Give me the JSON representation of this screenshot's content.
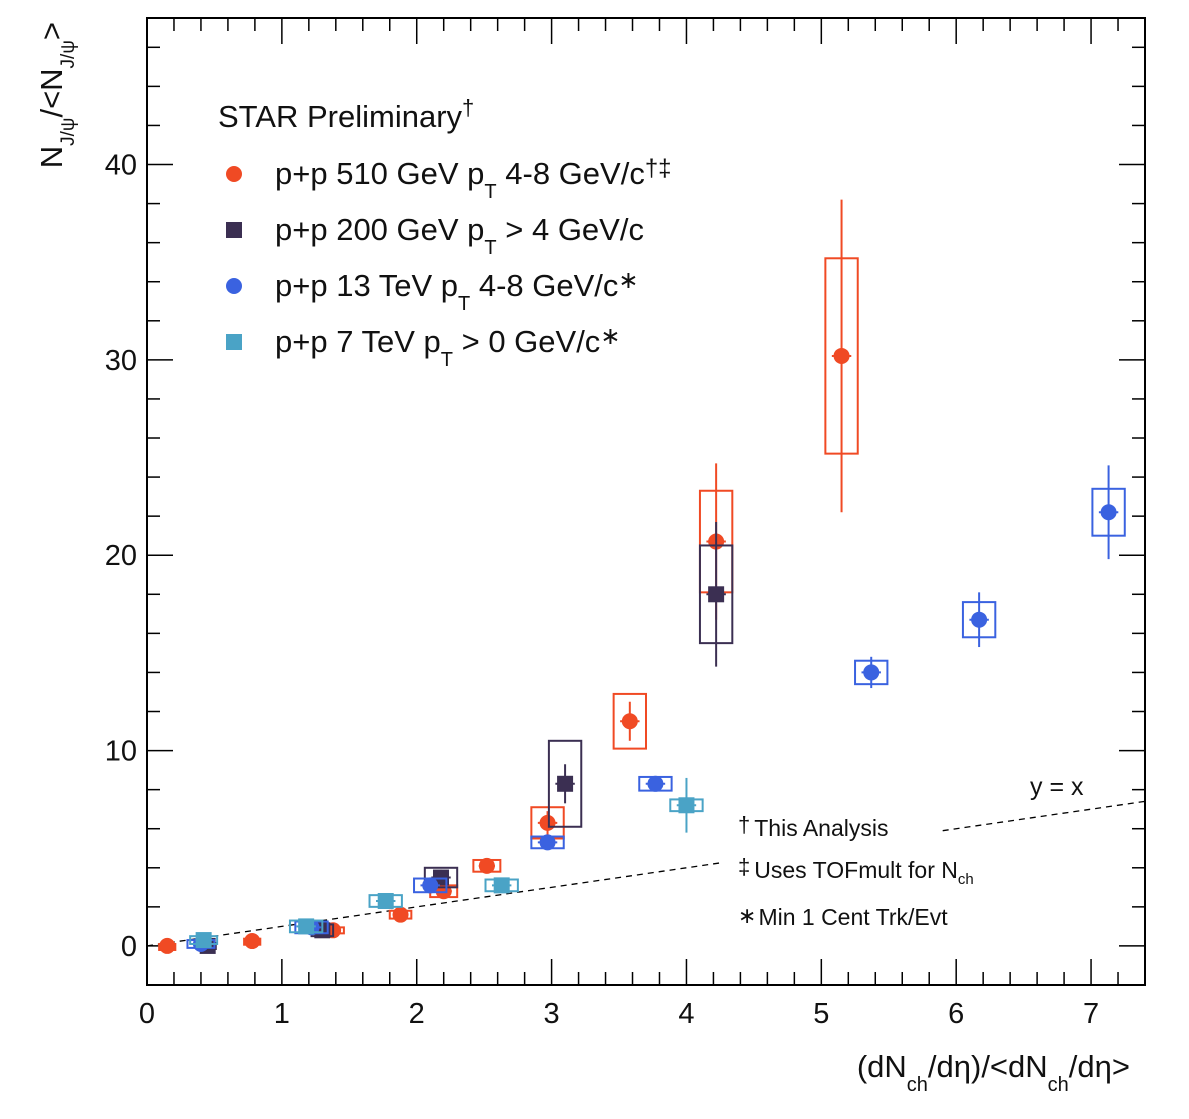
{
  "chart_data": {
    "type": "scatter",
    "title": "",
    "xlabel": {
      "main": "(dN",
      "sub1": "ch",
      "mid": "/dη)/<dN",
      "sub2": "ch",
      "end": "/dη>"
    },
    "ylabel": {
      "a": "N",
      "sub1": "J/ψ",
      "b": "/<N",
      "sub2": "J/ψ",
      "c": ">"
    },
    "xlim": [
      0,
      7.4
    ],
    "ylim": [
      -2,
      47.5
    ],
    "x_ticks": [
      "0",
      "1",
      "2",
      "3",
      "4",
      "5",
      "6",
      "7"
    ],
    "y_ticks": [
      "0",
      "10",
      "20",
      "30",
      "40"
    ],
    "header": {
      "text": "STAR Preliminary",
      "sup": "†"
    },
    "colors": {
      "pp510": "#f04a24",
      "pp200": "#3b2f52",
      "pp13": "#3a62e0",
      "pp7": "#4aa3c6",
      "axis": "#000000"
    },
    "series": [
      {
        "key": "pp510",
        "name": "p+p 510 GeV p",
        "name_sub": "T",
        "name_rest": " 4-8 GeV/c",
        "name_sup": "†‡",
        "marker": "circle",
        "color": "#f04a24",
        "points": [
          {
            "x": 0.15,
            "y": 0.0,
            "stat": 0.15,
            "sys": 0.1,
            "bw": 0.06
          },
          {
            "x": 0.78,
            "y": 0.25,
            "stat": 0.2,
            "sys": 0.12,
            "bw": 0.06
          },
          {
            "x": 1.38,
            "y": 0.8,
            "stat": 0.2,
            "sys": 0.15,
            "bw": 0.08
          },
          {
            "x": 1.88,
            "y": 1.6,
            "stat": 0.2,
            "sys": 0.2,
            "bw": 0.08
          },
          {
            "x": 2.2,
            "y": 2.8,
            "stat": 0.25,
            "sys": 0.3,
            "bw": 0.1
          },
          {
            "x": 2.52,
            "y": 4.1,
            "stat": 0.35,
            "sys": 0.3,
            "bw": 0.1
          },
          {
            "x": 2.97,
            "y": 6.3,
            "stat": 0.6,
            "sys": 0.8,
            "bw": 0.12
          },
          {
            "x": 3.58,
            "y": 11.5,
            "stat": 1.0,
            "sys": 1.4,
            "bw": 0.12
          },
          {
            "x": 4.22,
            "y": 20.7,
            "stat": 4.0,
            "sys": 2.6,
            "bw": 0.12
          },
          {
            "x": 5.15,
            "y": 30.2,
            "stat": 8.0,
            "sys": 5.0,
            "bw": 0.12
          }
        ]
      },
      {
        "key": "pp200",
        "name": "p+p 200 GeV p",
        "name_sub": "T",
        "name_rest": " > 4 GeV/c",
        "name_sup": "",
        "marker": "square",
        "color": "#3b2f52",
        "points": [
          {
            "x": 0.45,
            "y": 0.0,
            "stat": 0.15,
            "sys": 0.15,
            "bw": 0.06
          },
          {
            "x": 1.3,
            "y": 0.8,
            "stat": 0.3,
            "sys": 0.3,
            "bw": 0.08
          },
          {
            "x": 2.18,
            "y": 3.5,
            "stat": 0.4,
            "sys": 0.5,
            "bw": 0.12
          },
          {
            "x": 3.1,
            "y": 8.3,
            "stat": 1.0,
            "sys": 2.2,
            "bw": 0.12
          },
          {
            "x": 4.22,
            "y": 18.0,
            "stat": 3.7,
            "sys": 2.5,
            "bw": 0.12
          }
        ]
      },
      {
        "key": "pp13",
        "name": "p+p 13 TeV p",
        "name_sub": "T",
        "name_rest": " 4-8 GeV/c",
        "name_sup": "∗",
        "marker": "circle",
        "color": "#3a62e0",
        "points": [
          {
            "x": 0.4,
            "y": 0.1,
            "stat": 0.15,
            "sys": 0.2,
            "bw": 0.1
          },
          {
            "x": 1.22,
            "y": 0.95,
            "stat": 0.2,
            "sys": 0.3,
            "bw": 0.12
          },
          {
            "x": 2.1,
            "y": 3.1,
            "stat": 0.3,
            "sys": 0.35,
            "bw": 0.12
          },
          {
            "x": 2.97,
            "y": 5.3,
            "stat": 0.3,
            "sys": 0.3,
            "bw": 0.12
          },
          {
            "x": 3.77,
            "y": 8.3,
            "stat": 0.4,
            "sys": 0.35,
            "bw": 0.12
          },
          {
            "x": 5.37,
            "y": 14.0,
            "stat": 0.8,
            "sys": 0.6,
            "bw": 0.12
          },
          {
            "x": 6.17,
            "y": 16.7,
            "stat": 1.4,
            "sys": 0.9,
            "bw": 0.12
          },
          {
            "x": 7.13,
            "y": 22.2,
            "stat": 2.4,
            "sys": 1.2,
            "bw": 0.12
          }
        ]
      },
      {
        "key": "pp7",
        "name": "p+p 7 TeV p",
        "name_sub": "T",
        "name_rest": " > 0 GeV/c",
        "name_sup": "∗",
        "marker": "square",
        "color": "#4aa3c6",
        "points": [
          {
            "x": 0.42,
            "y": 0.3,
            "stat": 0.2,
            "sys": 0.2,
            "bw": 0.1
          },
          {
            "x": 1.18,
            "y": 1.0,
            "stat": 0.2,
            "sys": 0.3,
            "bw": 0.12
          },
          {
            "x": 1.77,
            "y": 2.3,
            "stat": 0.3,
            "sys": 0.3,
            "bw": 0.12
          },
          {
            "x": 2.63,
            "y": 3.1,
            "stat": 0.3,
            "sys": 0.3,
            "bw": 0.12
          },
          {
            "x": 4.0,
            "y": 7.2,
            "stat": 1.4,
            "sys": 0.3,
            "bw": 0.12
          }
        ]
      }
    ],
    "reference_line": {
      "label": "y = x",
      "from": [
        0,
        0
      ],
      "to": [
        7.4,
        7.4
      ]
    },
    "notes": [
      {
        "symbol": "†",
        "text": "This Analysis",
        "sub": ""
      },
      {
        "symbol": "‡",
        "text": "Uses TOFmult for N",
        "sub": "ch"
      },
      {
        "symbol": "∗",
        "text": "Min 1 Cent Trk/Evt",
        "sub": ""
      }
    ]
  }
}
